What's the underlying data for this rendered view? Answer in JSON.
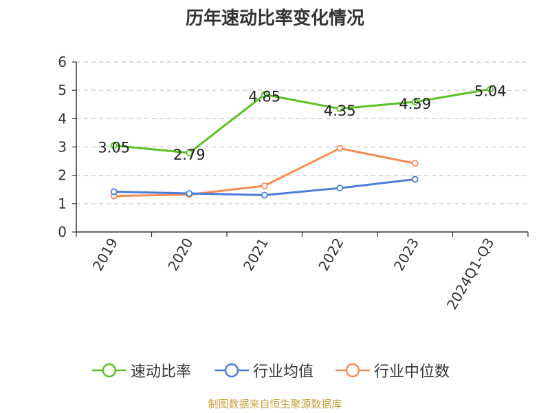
{
  "chart_data": {
    "type": "line",
    "title": "历年速动比率变化情况",
    "categories": [
      "2019",
      "2020",
      "2021",
      "2022",
      "2023",
      "2024Q1-Q3"
    ],
    "ylim": [
      0,
      6
    ],
    "yticks": [
      0,
      1,
      2,
      3,
      4,
      5,
      6
    ],
    "grid": true,
    "legend_position": "bottom",
    "series": [
      {
        "name": "速动比率",
        "color": "#5bc223",
        "values": [
          3.05,
          2.79,
          4.85,
          4.35,
          4.59,
          5.04
        ],
        "show_labels": true
      },
      {
        "name": "行业均值",
        "color": "#4a7bd8",
        "values": [
          1.42,
          1.36,
          1.3,
          1.55,
          1.86,
          null
        ],
        "show_labels": false
      },
      {
        "name": "行业中位数",
        "color": "#f58c55",
        "values": [
          1.27,
          1.32,
          1.63,
          2.95,
          2.42,
          null
        ],
        "show_labels": false
      }
    ],
    "value_labels": [
      "3.05",
      "2.79",
      "4.85",
      "4.35",
      "4.59",
      "5.04"
    ]
  },
  "footer": {
    "source": "制图数据来自恒生聚源数据库"
  }
}
